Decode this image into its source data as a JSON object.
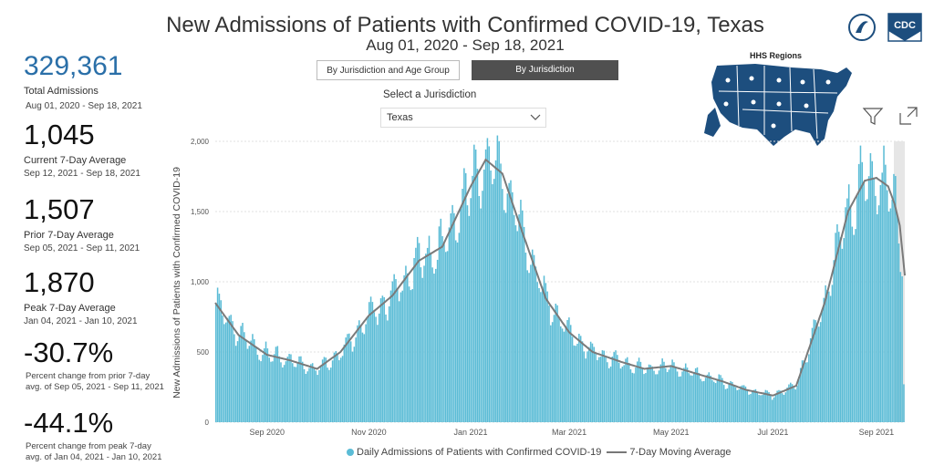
{
  "header": {
    "title": "New Admissions of Patients with Confirmed COVID-19, Texas",
    "subtitle": "Aug 01, 2020 - Sep 18, 2021"
  },
  "logo": {
    "cdc_text": "CDC"
  },
  "stats": {
    "total": {
      "value": "329,361",
      "label": "Total Admissions",
      "range": "Aug 01, 2020 - Sep 18, 2021"
    },
    "current": {
      "value": "1,045",
      "label": "Current 7-Day Average",
      "range": "Sep 12, 2021 - Sep 18, 2021"
    },
    "prior": {
      "value": "1,507",
      "label": "Prior 7-Day Average",
      "range": "Sep 05, 2021 - Sep 11, 2021"
    },
    "peak": {
      "value": "1,870",
      "label": "Peak 7-Day Average",
      "range": "Jan 04, 2021 - Jan 10, 2021"
    },
    "pct_prior": {
      "value": "-30.7%",
      "line1": "Percent change from prior 7-day",
      "line2": "avg. of Sep 05, 2021 - Sep 11, 2021"
    },
    "pct_peak": {
      "value": "-44.1%",
      "line1": "Percent change from peak 7-day",
      "line2": "avg. of Jan 04, 2021 - Jan 10, 2021"
    }
  },
  "controls": {
    "btn_age": "By Jurisdiction and Age Group",
    "btn_jur": "By Jurisdiction",
    "select_label": "Select a Jurisdiction",
    "select_value": "Texas"
  },
  "map": {
    "label": "HHS Regions"
  },
  "legend": {
    "bars": "Daily Admissions of Patients with Confirmed COVID-19",
    "line": "7-Day Moving Average"
  },
  "colors": {
    "bar": "#5bbcd6",
    "line": "#7a7a7a",
    "accent": "#2a6fa8",
    "map": "#1d4e7e"
  },
  "chart_data": {
    "type": "bar",
    "ylabel": "New Admissions of Patients with Confirmed COVID-19",
    "ylim": [
      0,
      2000
    ],
    "yticks": [
      {
        "v": 0,
        "label": "0"
      },
      {
        "v": 500,
        "label": "500"
      },
      {
        "v": 1000,
        "label": "1,000"
      },
      {
        "v": 1500,
        "label": "1,500"
      },
      {
        "v": 2000,
        "label": "2,000"
      }
    ],
    "xticks": [
      {
        "date": "2020-09-01",
        "label": "Sep 2020"
      },
      {
        "date": "2020-11-01",
        "label": "Nov 2020"
      },
      {
        "date": "2021-01-01",
        "label": "Jan 2021"
      },
      {
        "date": "2021-03-01",
        "label": "Mar 2021"
      },
      {
        "date": "2021-05-01",
        "label": "May 2021"
      },
      {
        "date": "2021-07-01",
        "label": "Jul 2021"
      },
      {
        "date": "2021-09-01",
        "label": "Sep 2021"
      }
    ],
    "grid": true,
    "legend_position": "bottom",
    "x_range": [
      "2020-08-01",
      "2021-09-18"
    ],
    "series": [
      {
        "name": "7-Day Moving Average",
        "x": [
          "2020-08-01",
          "2020-08-15",
          "2020-09-01",
          "2020-09-15",
          "2020-10-01",
          "2020-10-15",
          "2020-11-01",
          "2020-11-15",
          "2020-12-01",
          "2020-12-15",
          "2021-01-01",
          "2021-01-10",
          "2021-01-20",
          "2021-02-01",
          "2021-02-15",
          "2021-03-01",
          "2021-03-15",
          "2021-04-01",
          "2021-04-15",
          "2021-05-01",
          "2021-05-15",
          "2021-06-01",
          "2021-06-15",
          "2021-07-01",
          "2021-07-15",
          "2021-08-01",
          "2021-08-15",
          "2021-08-25",
          "2021-09-01",
          "2021-09-08",
          "2021-09-12",
          "2021-09-15",
          "2021-09-18"
        ],
        "y": [
          850,
          620,
          480,
          440,
          380,
          500,
          760,
          900,
          1150,
          1250,
          1680,
          1870,
          1770,
          1350,
          880,
          640,
          500,
          430,
          380,
          400,
          350,
          290,
          230,
          190,
          260,
          850,
          1500,
          1720,
          1740,
          1680,
          1550,
          1400,
          1045
        ]
      }
    ]
  }
}
